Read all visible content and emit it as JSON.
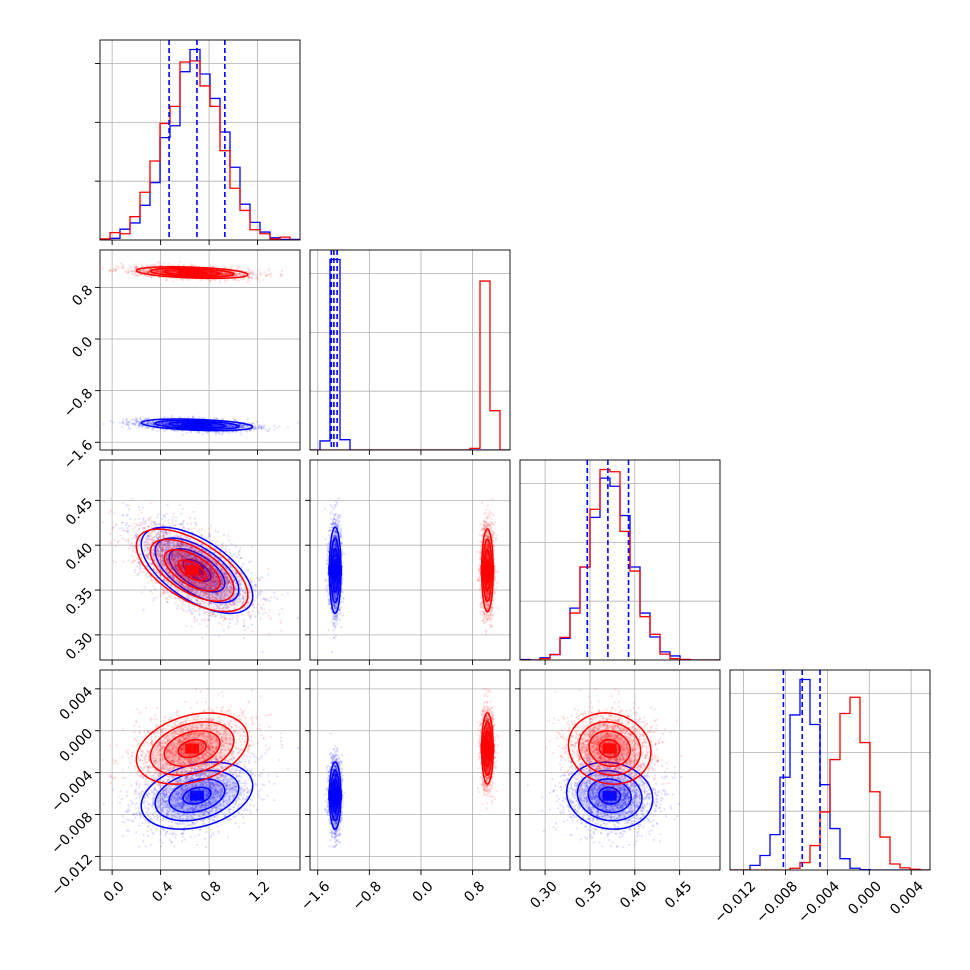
{
  "colors": {
    "series_a": "#0000ff",
    "series_b": "#ff0000",
    "grid": "#b0b0b0"
  },
  "chart_data": {
    "type": "corner",
    "variables": [
      {
        "range": [
          -0.1,
          1.55
        ],
        "ticks": [
          0.0,
          0.4,
          0.8,
          1.2
        ],
        "tick_labels": [
          "0.0",
          "0.4",
          "0.8",
          "1.2"
        ]
      },
      {
        "range": [
          -1.72,
          1.38
        ],
        "ticks": [
          -1.6,
          -0.8,
          0.0,
          0.8
        ],
        "tick_labels": [
          "−1.6",
          "−0.8",
          "0.0",
          "0.8"
        ]
      },
      {
        "range": [
          0.272,
          0.495
        ],
        "ticks": [
          0.3,
          0.35,
          0.4,
          0.45
        ],
        "tick_labels": [
          "0.30",
          "0.35",
          "0.40",
          "0.45"
        ]
      },
      {
        "range": [
          -0.0133,
          0.0058
        ],
        "ticks": [
          -0.012,
          -0.008,
          -0.004,
          0.0,
          0.004
        ],
        "tick_labels": [
          "−0.012",
          "−0.008",
          "−0.004",
          "0.000",
          "0.004"
        ]
      }
    ],
    "series": [
      {
        "color": "blue",
        "mean": [
          0.7,
          -1.33,
          0.372,
          -0.0062
        ],
        "sd": [
          0.23,
          0.045,
          0.024,
          0.0016
        ],
        "corr": [
          [
            1.0,
            -0.35,
            -0.6,
            0.3
          ],
          [
            -0.35,
            1.0,
            0.0,
            0.0
          ],
          [
            -0.6,
            0.0,
            1.0,
            -0.1
          ],
          [
            0.3,
            0.0,
            -0.1,
            1.0
          ]
        ],
        "quantiles": [
          [
            0.47,
            0.7,
            0.93
          ],
          [
            -1.39,
            -1.35,
            -1.3
          ],
          [
            0.347,
            0.37,
            0.393
          ],
          [
            -0.0082,
            -0.0064,
            -0.0047
          ]
        ]
      },
      {
        "color": "red",
        "mean": [
          0.66,
          1.03,
          0.372,
          -0.0017
        ],
        "sd": [
          0.23,
          0.045,
          0.023,
          0.0017
        ],
        "corr": [
          [
            1.0,
            -0.35,
            -0.6,
            0.3
          ],
          [
            -0.35,
            1.0,
            0.0,
            0.0
          ],
          [
            -0.6,
            0.0,
            1.0,
            -0.1
          ],
          [
            0.3,
            0.0,
            -0.1,
            1.0
          ]
        ],
        "quantiles": []
      }
    ],
    "diag_hist_bins": 20,
    "grid": true,
    "title": "",
    "xlabel": "",
    "ylabel": ""
  }
}
